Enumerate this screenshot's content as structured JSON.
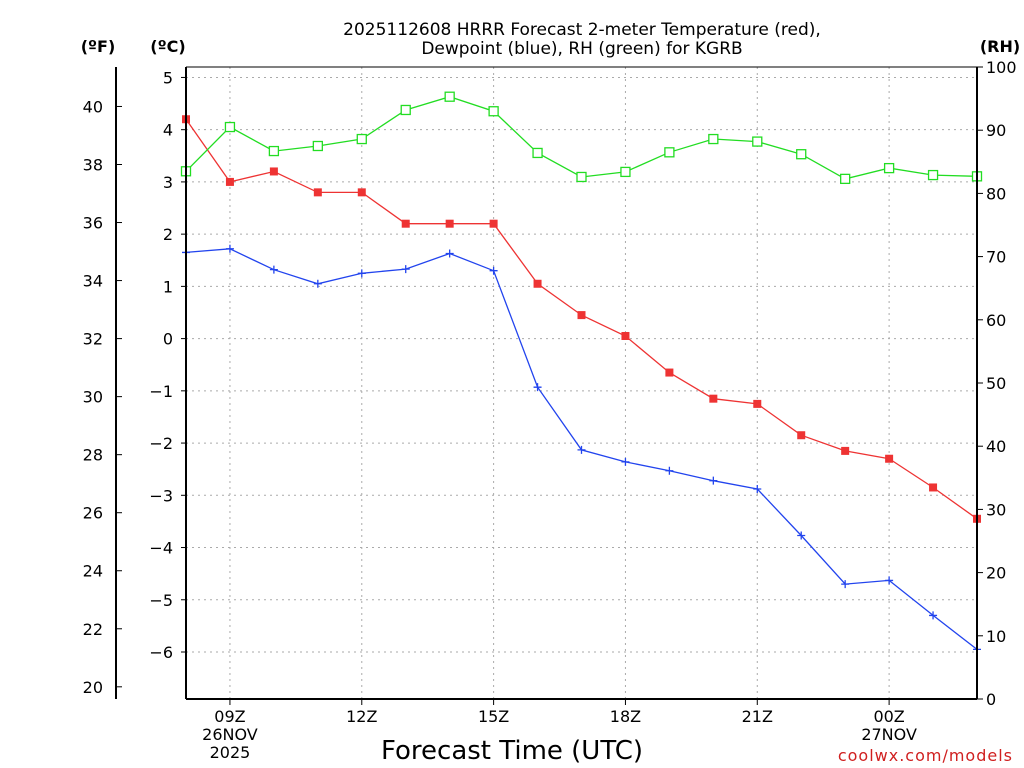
{
  "chart_data": {
    "type": "line",
    "title": [
      "2025112608 HRRR Forecast 2-meter Temperature (red),",
      "Dewpoint (blue), RH (green) for KGRB"
    ],
    "xlabel": "Forecast Time (UTC)",
    "credit": "coolwx.com/models",
    "units": {
      "left_outer": "(ºF)",
      "left_inner": "(ºC)",
      "right": "(RH)"
    },
    "x_hours": [
      8,
      9,
      10,
      11,
      12,
      13,
      14,
      15,
      16,
      17,
      18,
      19,
      20,
      21,
      22,
      23,
      24,
      25,
      26
    ],
    "xlim": [
      8,
      26
    ],
    "x_ticks": [
      {
        "hour": 9,
        "lines": [
          "09Z",
          "26NOV",
          "2025"
        ]
      },
      {
        "hour": 12,
        "lines": [
          "12Z"
        ]
      },
      {
        "hour": 15,
        "lines": [
          "15Z"
        ]
      },
      {
        "hour": 18,
        "lines": [
          "18Z"
        ]
      },
      {
        "hour": 21,
        "lines": [
          "21Z"
        ]
      },
      {
        "hour": 24,
        "lines": [
          "00Z",
          "27NOV"
        ]
      }
    ],
    "y_celsius": {
      "ylim": [
        -6.9,
        5.2
      ],
      "ticks": [
        5,
        4,
        3,
        2,
        1,
        0,
        -1,
        -2,
        -3,
        -4,
        -5,
        -6
      ]
    },
    "y_fahrenheit": {
      "ticks": [
        40,
        38,
        36,
        34,
        32,
        30,
        28,
        26,
        24,
        22,
        20
      ]
    },
    "y_rh": {
      "ylim": [
        0,
        100
      ],
      "ticks": [
        100,
        90,
        80,
        70,
        60,
        50,
        40,
        30,
        20,
        10,
        0
      ]
    },
    "series": [
      {
        "name": "Temperature",
        "axis": "celsius",
        "color": "#ee3333",
        "marker": "filled-square",
        "values": [
          4.2,
          3.0,
          3.2,
          2.8,
          2.8,
          2.2,
          2.2,
          2.2,
          1.05,
          0.45,
          0.05,
          -0.65,
          -1.15,
          -1.25,
          -1.85,
          -2.15,
          -2.3,
          -2.85,
          -3.45
        ]
      },
      {
        "name": "Dewpoint",
        "axis": "celsius",
        "color": "#2244ee",
        "marker": "plus",
        "values": [
          1.65,
          1.72,
          1.32,
          1.05,
          1.25,
          1.33,
          1.63,
          1.3,
          -0.93,
          -2.13,
          -2.36,
          -2.53,
          -2.72,
          -2.88,
          -3.77,
          -4.7,
          -4.63,
          -5.3,
          -5.95
        ]
      },
      {
        "name": "RH",
        "axis": "rh",
        "color": "#22dd22",
        "marker": "open-square",
        "values": [
          83.5,
          90.5,
          86.7,
          87.5,
          88.6,
          93.2,
          95.3,
          93.0,
          86.4,
          82.6,
          83.4,
          86.5,
          88.6,
          88.2,
          86.2,
          82.3,
          84.0,
          82.9,
          82.7
        ]
      }
    ]
  }
}
